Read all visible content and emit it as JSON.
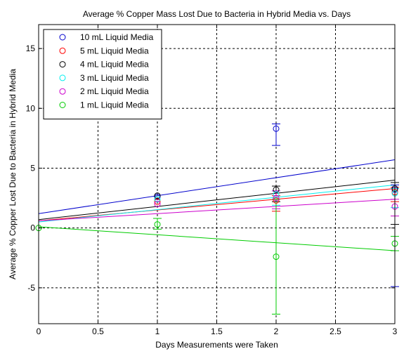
{
  "chart_data": {
    "type": "scatter",
    "title": "Average % Copper Mass Lost Due to Bacteria in Hybrid Media vs. Days",
    "xlabel": "Days Measurements were Taken",
    "ylabel": "Average % Copper Lost Due to Bacteria in Hybrid Media",
    "xlim": [
      0,
      3
    ],
    "ylim": [
      -8,
      17
    ],
    "xticks": [
      "0",
      "0.5",
      "1",
      "1.5",
      "2",
      "2.5",
      "3"
    ],
    "xtick_values": [
      0,
      0.5,
      1,
      1.5,
      2,
      2.5,
      3
    ],
    "yticks": [
      "-5",
      "0",
      "5",
      "10",
      "15"
    ],
    "ytick_values": [
      -5,
      0,
      5,
      10,
      15
    ],
    "grid": true,
    "legend_position": "top-left",
    "series": [
      {
        "name": "10 mL Liquid Media",
        "color": "#0000cc",
        "x": [
          1,
          2,
          3
        ],
        "y": [
          2.6,
          8.3,
          3.2
        ],
        "err": [
          [
            1,
            1.4,
            0.4
          ],
          [
            2,
            8.1,
            0.4
          ]
        ],
        "fit": [
          1.2,
          5.7
        ]
      },
      {
        "name": "5 mL Liquid Media",
        "color": "#ff0000",
        "x": [
          1,
          2,
          3
        ],
        "y": [
          2.2,
          2.3,
          3.0
        ],
        "err": [
          [
            1,
            0.9,
            0.4
          ],
          [
            2,
            0.8,
            0.4
          ]
        ],
        "fit": [
          0.6,
          3.3
        ]
      },
      {
        "name": "4 mL Liquid Media",
        "color": "#000000",
        "x": [
          1,
          2,
          3
        ],
        "y": [
          2.7,
          3.2,
          3.3
        ],
        "err": [
          [
            1,
            1.0,
            0.3
          ],
          [
            2,
            3.0,
            0.5
          ]
        ],
        "fit": [
          0.7,
          4.0
        ]
      },
      {
        "name": "3 mL Liquid Media",
        "color": "#00eeee",
        "x": [
          1,
          2,
          3
        ],
        "y": [
          2.4,
          2.8,
          2.9
        ],
        "err": [
          [
            1,
            0.9,
            0.3
          ],
          [
            2,
            1.2,
            0.4
          ]
        ],
        "fit": [
          0.5,
          3.6
        ]
      },
      {
        "name": "2 mL Liquid Media",
        "color": "#cc00cc",
        "x": [
          1,
          2,
          3
        ],
        "y": [
          2.0,
          2.5,
          1.8
        ],
        "err": [
          [
            1,
            0.9,
            0.6
          ],
          [
            2,
            0.8,
            0.6
          ]
        ],
        "fit": [
          0.6,
          2.4
        ]
      },
      {
        "name": "1 mL Liquid Media",
        "color": "#00cc00",
        "x": [
          0,
          1,
          2,
          3
        ],
        "y": [
          0,
          0.3,
          -2.4,
          -1.3
        ],
        "err": [
          [
            1,
            0.4,
            0.5
          ],
          [
            2,
            4.8,
            4.8
          ],
          [
            3,
            0.6,
            0.6
          ]
        ],
        "fit": [
          0.1,
          -1.9
        ]
      }
    ]
  }
}
